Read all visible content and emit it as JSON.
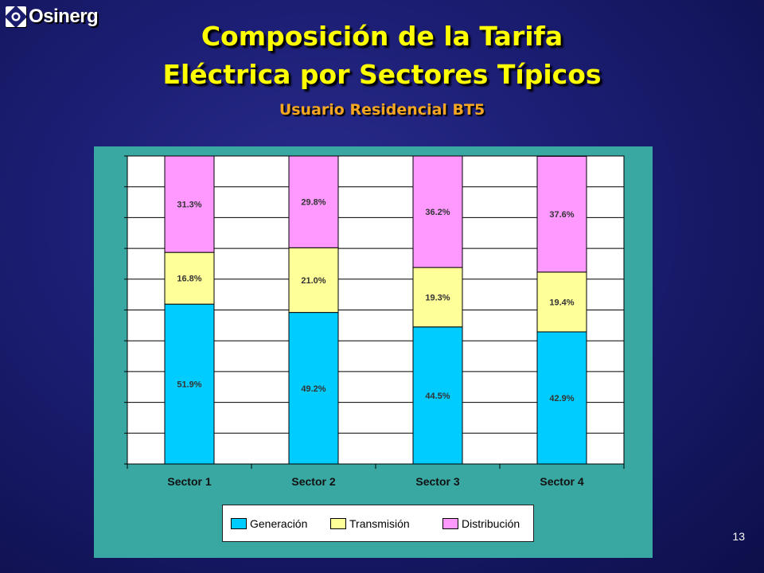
{
  "logo": {
    "text": "Osinerg"
  },
  "title": {
    "line1": "Composición de la Tarifa",
    "line2": "Eléctrica por Sectores Típicos"
  },
  "subtitle": "Usuario Residencial BT5",
  "page_number": "13",
  "colors": {
    "generacion": "#00ccff",
    "transmision": "#ffff99",
    "distribucion": "#ff99ff",
    "panel_bg": "#3aa8a2",
    "title": "#ffff00",
    "subtitle": "#f5a623"
  },
  "chart_data": {
    "type": "bar",
    "stacked": true,
    "percent_stacked": true,
    "categories": [
      "Sector 1",
      "Sector 2",
      "Sector 3",
      "Sector 4"
    ],
    "series": [
      {
        "name": "Generación",
        "values": [
          51.9,
          49.2,
          44.5,
          42.9
        ],
        "labels": [
          "51.9%",
          "49.2%",
          "44.5%",
          "42.9%"
        ],
        "color": "#00ccff"
      },
      {
        "name": "Transmisión",
        "values": [
          16.8,
          21.0,
          19.3,
          19.4
        ],
        "labels": [
          "16.8%",
          "21.0%",
          "19.3%",
          "19.4%"
        ],
        "color": "#ffff99"
      },
      {
        "name": "Distribución",
        "values": [
          31.3,
          29.8,
          36.2,
          37.6
        ],
        "labels": [
          "31.3%",
          "29.8%",
          "36.2%",
          "37.6%"
        ],
        "color": "#ff99ff"
      }
    ],
    "ylim": [
      0,
      100
    ],
    "grid": true,
    "legend_position": "bottom"
  }
}
